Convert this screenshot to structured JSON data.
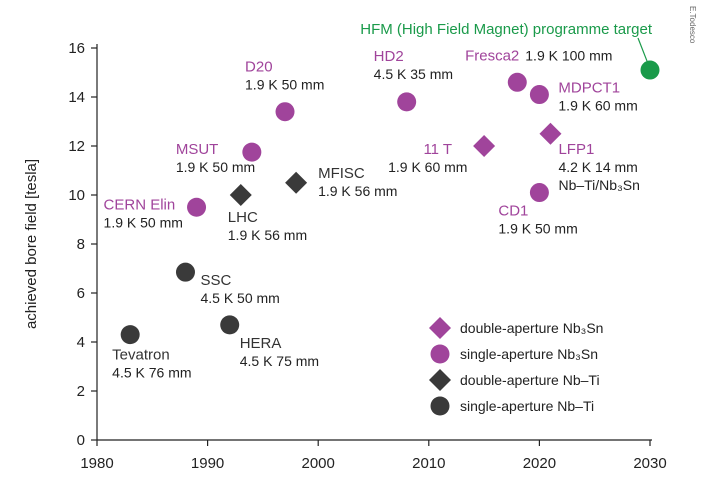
{
  "chart_data": {
    "type": "scatter",
    "y_label": "achieved bore field [tesla]",
    "credit": "E.Todesco",
    "xlim": [
      1980,
      2030
    ],
    "xticks": [
      1980,
      1990,
      2000,
      2010,
      2020,
      2030
    ],
    "ylim": [
      0,
      16
    ],
    "yticks": [
      0,
      2,
      4,
      6,
      8,
      10,
      12,
      14,
      16
    ],
    "legend": "lower right",
    "series": [
      {
        "name": "double-aperture Nb₃Sn",
        "color": "#a0449b",
        "marker": "diamond",
        "x": [
          2015,
          2021
        ],
        "values": [
          12,
          12.5
        ],
        "labels": [
          "11 T",
          "LFP1"
        ],
        "details": [
          [
            "1.9 K 60 mm"
          ],
          [
            "4.2 K 14 mm",
            "Nb–Ti/Nb₃Sn"
          ]
        ]
      },
      {
        "name": "single-aperture Nb₃Sn",
        "color": "#a0449b",
        "marker": "circle",
        "x": [
          1989,
          1994,
          1997,
          2008,
          2018,
          2020,
          2020
        ],
        "values": [
          9.5,
          11.75,
          13.4,
          13.8,
          14.6,
          14.1,
          10.1
        ],
        "labels": [
          "CERN Elin",
          "MSUT",
          "D20",
          "HD2",
          "Fresca2",
          "MDPCT1",
          "CD1"
        ],
        "details": [
          [
            "1.9 K 50 mm"
          ],
          [
            "1.9 K 50 mm"
          ],
          [
            "1.9 K 50 mm"
          ],
          [
            "4.5 K 35 mm"
          ],
          [
            "1.9 K 100 mm"
          ],
          [
            "1.9 K 60 mm"
          ],
          [
            "1.9 K 50 mm"
          ]
        ]
      },
      {
        "name": "double-aperture Nb–Ti",
        "color": "#3a3a3a",
        "marker": "diamond",
        "x": [
          1993,
          1998
        ],
        "values": [
          10,
          10.5
        ],
        "labels": [
          "LHC",
          "MFISC"
        ],
        "details": [
          [
            "1.9 K 56 mm"
          ],
          [
            "1.9 K 56 mm"
          ]
        ]
      },
      {
        "name": "single-aperture Nb–Ti",
        "color": "#3a3a3a",
        "marker": "circle",
        "x": [
          1983,
          1988,
          1992
        ],
        "values": [
          4.3,
          6.85,
          4.7
        ],
        "labels": [
          "Tevatron",
          "SSC",
          "HERA"
        ],
        "details": [
          [
            "4.5 K 76 mm"
          ],
          [
            "4.5 K 50 mm"
          ],
          [
            "4.5 K 75 mm"
          ]
        ]
      }
    ],
    "target": {
      "label": "HFM (High Field Magnet) programme target",
      "x": 2030,
      "value": 15.1,
      "color": "#1a9a4a"
    }
  }
}
